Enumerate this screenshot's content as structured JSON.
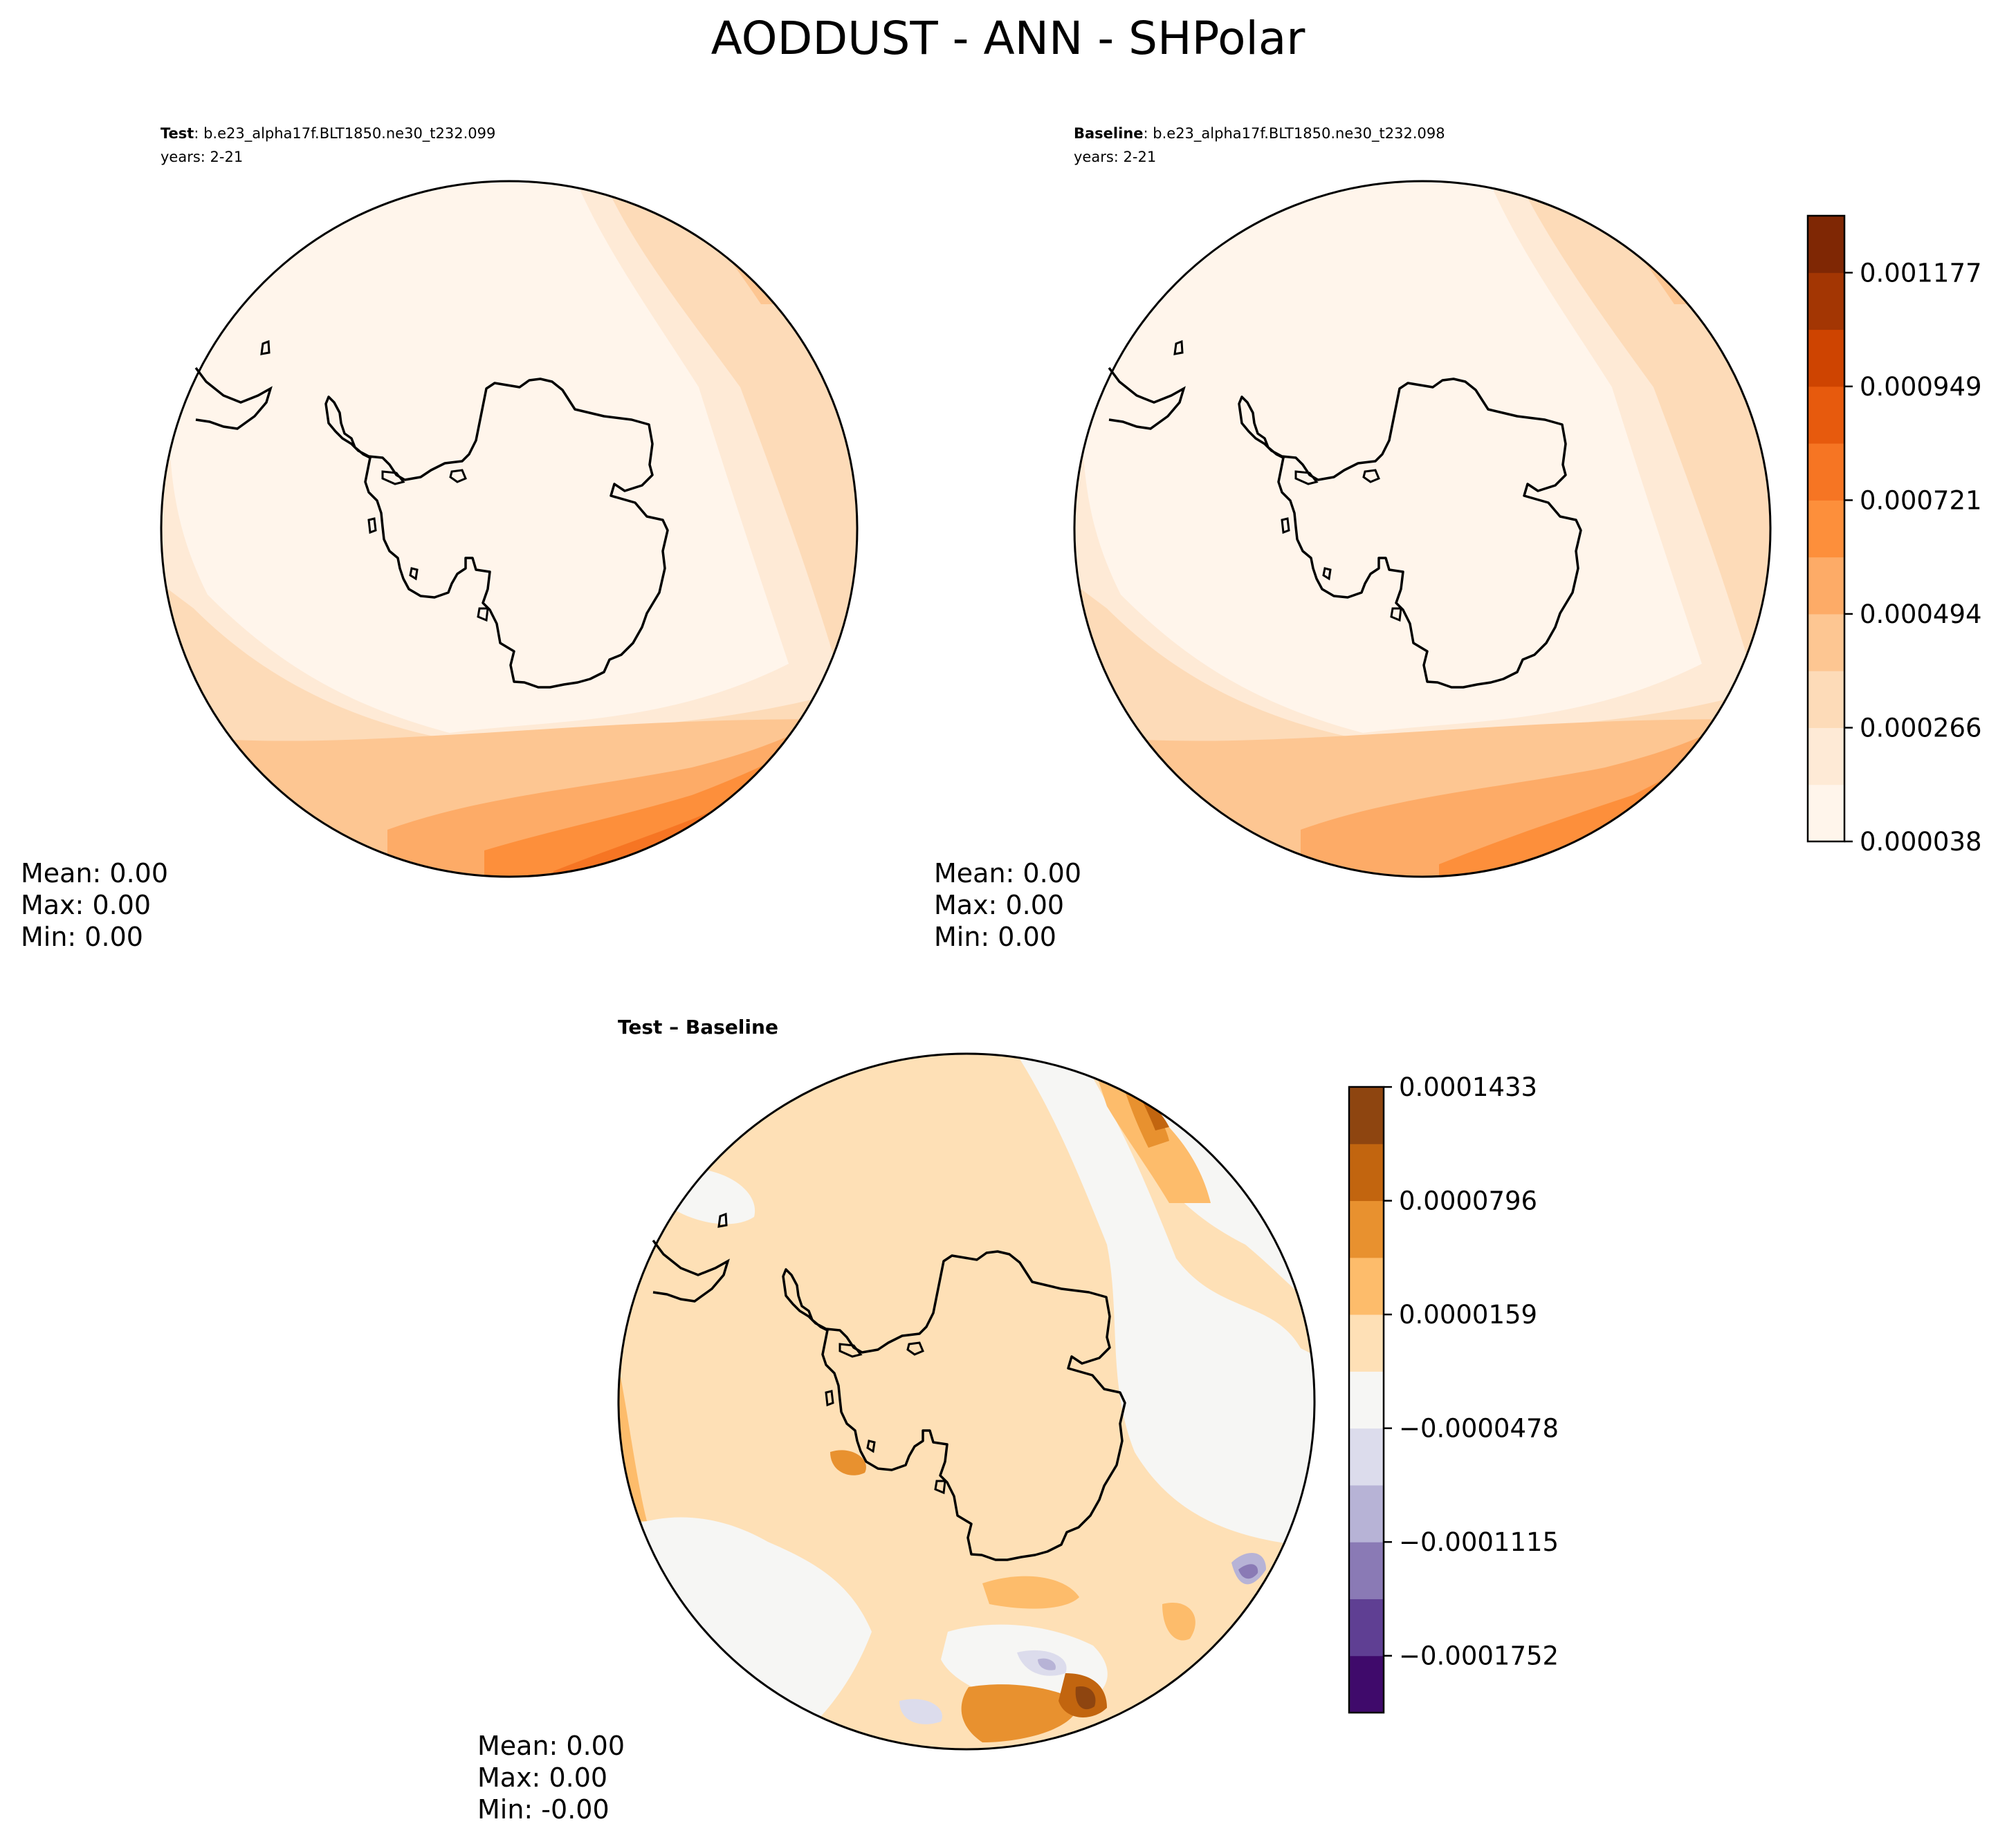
{
  "title": "AODDUST - ANN - SHPolar",
  "panels": {
    "test": {
      "label": "Test",
      "case": ": b.e23_alpha17f.BLT1850.ne30_t232.099",
      "years": "years: 2-21",
      "stats": {
        "mean": "Mean:  0.00",
        "max": "Max:  0.00",
        "min": "Min:  0.00"
      }
    },
    "baseline": {
      "label": "Baseline",
      "case": ": b.e23_alpha17f.BLT1850.ne30_t232.098",
      "years": "years: 2-21",
      "stats": {
        "mean": "Mean:  0.00",
        "max": "Max:  0.00",
        "min": "Min:  0.00"
      }
    },
    "diff": {
      "label": "Test – Baseline",
      "stats": {
        "mean": "Mean:  0.00",
        "max": "Max:  0.00",
        "min": "Min:  -0.00"
      }
    }
  },
  "colorbar_main": {
    "ticks": [
      "0.000038",
      "0.000266",
      "0.000494",
      "0.000721",
      "0.000949",
      "0.001177"
    ],
    "colors": [
      "#fff5eb",
      "#feead6",
      "#fddbb8",
      "#fdc692",
      "#fdab67",
      "#fd8f3b",
      "#f67523",
      "#e75a0d",
      "#ce4401",
      "#a33603",
      "#7f2704"
    ]
  },
  "colorbar_diff": {
    "ticks": [
      "−0.0001752",
      "−0.0001115",
      "−0.0000478",
      "0.0000159",
      "0.0000796",
      "0.0001433"
    ],
    "colors": [
      "#3f0a6b",
      "#5f3f93",
      "#8a7ab5",
      "#b7b3d6",
      "#dcdcec",
      "#f6f6f4",
      "#fee0b6",
      "#fdbc6b",
      "#e8912f",
      "#c2650f",
      "#8e4510"
    ]
  }
}
